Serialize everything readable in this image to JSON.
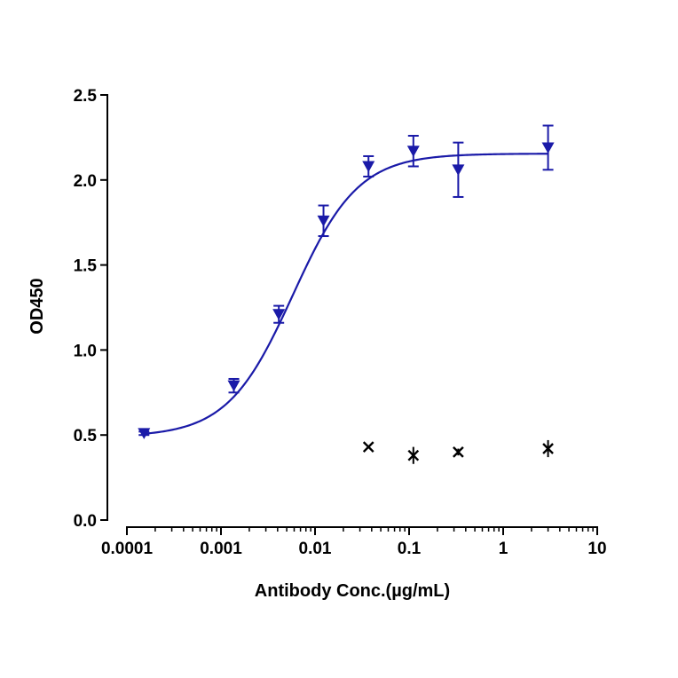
{
  "chart_data": {
    "type": "scatter",
    "xlabel": "Antibody Conc.(µg/mL)",
    "ylabel": "OD450",
    "x_scale": "log",
    "xlim": [
      0.0001,
      10
    ],
    "ylim": [
      0,
      2.5
    ],
    "x_ticks": [
      0.0001,
      0.001,
      0.01,
      0.1,
      1,
      10
    ],
    "x_tick_labels": [
      "0.0001",
      "0.001",
      "0.01",
      "0.1",
      "1",
      "10"
    ],
    "y_ticks": [
      0,
      0.5,
      1,
      1.5,
      2,
      2.5
    ],
    "y_tick_labels": [
      "0.0",
      "0.5",
      "1.0",
      "1.5",
      "2.0",
      "2.5"
    ],
    "grid": false,
    "legend": "none",
    "series": [
      {
        "marker": "down-triangle",
        "color": "#1a1aa8",
        "fit_curve": true,
        "points": [
          {
            "x": 0.000152,
            "y": 0.51,
            "err": 0.01
          },
          {
            "x": 0.00137,
            "y": 0.79,
            "err": 0.04
          },
          {
            "x": 0.00412,
            "y": 1.21,
            "err": 0.05
          },
          {
            "x": 0.0123,
            "y": 1.76,
            "err": 0.09
          },
          {
            "x": 0.037,
            "y": 2.08,
            "err": 0.06
          },
          {
            "x": 0.111,
            "y": 2.17,
            "err": 0.09
          },
          {
            "x": 0.333,
            "y": 2.06,
            "err": 0.16
          },
          {
            "x": 3.0,
            "y": 2.19,
            "err": 0.13
          }
        ]
      },
      {
        "marker": "cross",
        "color": "#000000",
        "fit_curve": false,
        "points": [
          {
            "x": 0.037,
            "y": 0.43,
            "err": 0.0
          },
          {
            "x": 0.111,
            "y": 0.38,
            "err": 0.05
          },
          {
            "x": 0.333,
            "y": 0.4,
            "err": 0.02
          },
          {
            "x": 3.0,
            "y": 0.42,
            "err": 0.05
          }
        ]
      }
    ],
    "fit": {
      "bottom": 0.49,
      "top": 2.155,
      "ec50": 0.0058,
      "hill": 1.25
    }
  }
}
